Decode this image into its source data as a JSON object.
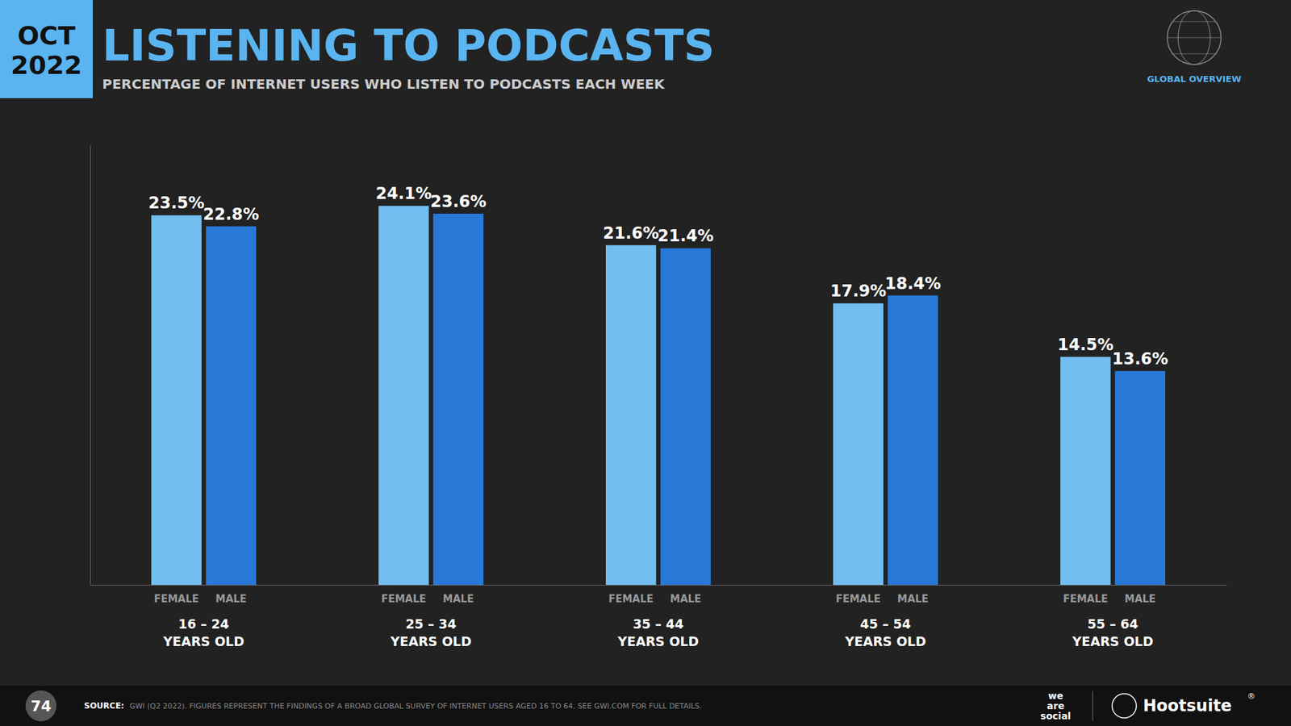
{
  "chart_data": {
    "type": "bar",
    "title": "LISTENING TO PODCASTS",
    "subtitle": "PERCENTAGE OF INTERNET USERS WHO LISTEN TO PODCASTS EACH WEEK",
    "categories": [
      "16 – 24\nYEARS OLD",
      "25 – 34\nYEARS OLD",
      "35 – 44\nYEARS OLD",
      "45 – 54\nYEARS OLD",
      "55 – 64\nYEARS OLD"
    ],
    "series": [
      {
        "name": "FEMALE",
        "color": "#72bef0",
        "values": [
          23.5,
          24.1,
          21.6,
          17.9,
          14.5
        ],
        "value_labels": [
          "23.5%",
          "24.1%",
          "21.6%",
          "17.9%",
          "14.5%"
        ]
      },
      {
        "name": "MALE",
        "color": "#2878d8",
        "values": [
          22.8,
          23.6,
          21.4,
          18.4,
          13.6
        ],
        "value_labels": [
          "22.8%",
          "23.6%",
          "21.4%",
          "18.4%",
          "13.6%"
        ]
      }
    ],
    "ylim": [
      0,
      28
    ],
    "data_labels": true,
    "tick_labels": "x",
    "annotations": [
      "OCT\n2022",
      "GLOBAL OVERVIEW",
      "SOURCE:",
      "GWI (Q2 2022). FIGURES REPRESENT THE FINDINGS OF A BROAD GLOBAL SURVEY OF INTERNET USERS AGED 16 TO 64. SEE GWI.COM FOR FULL DETAILS.",
      "74",
      "we\nare\nsocial",
      "Hootsuite",
      "®"
    ]
  }
}
